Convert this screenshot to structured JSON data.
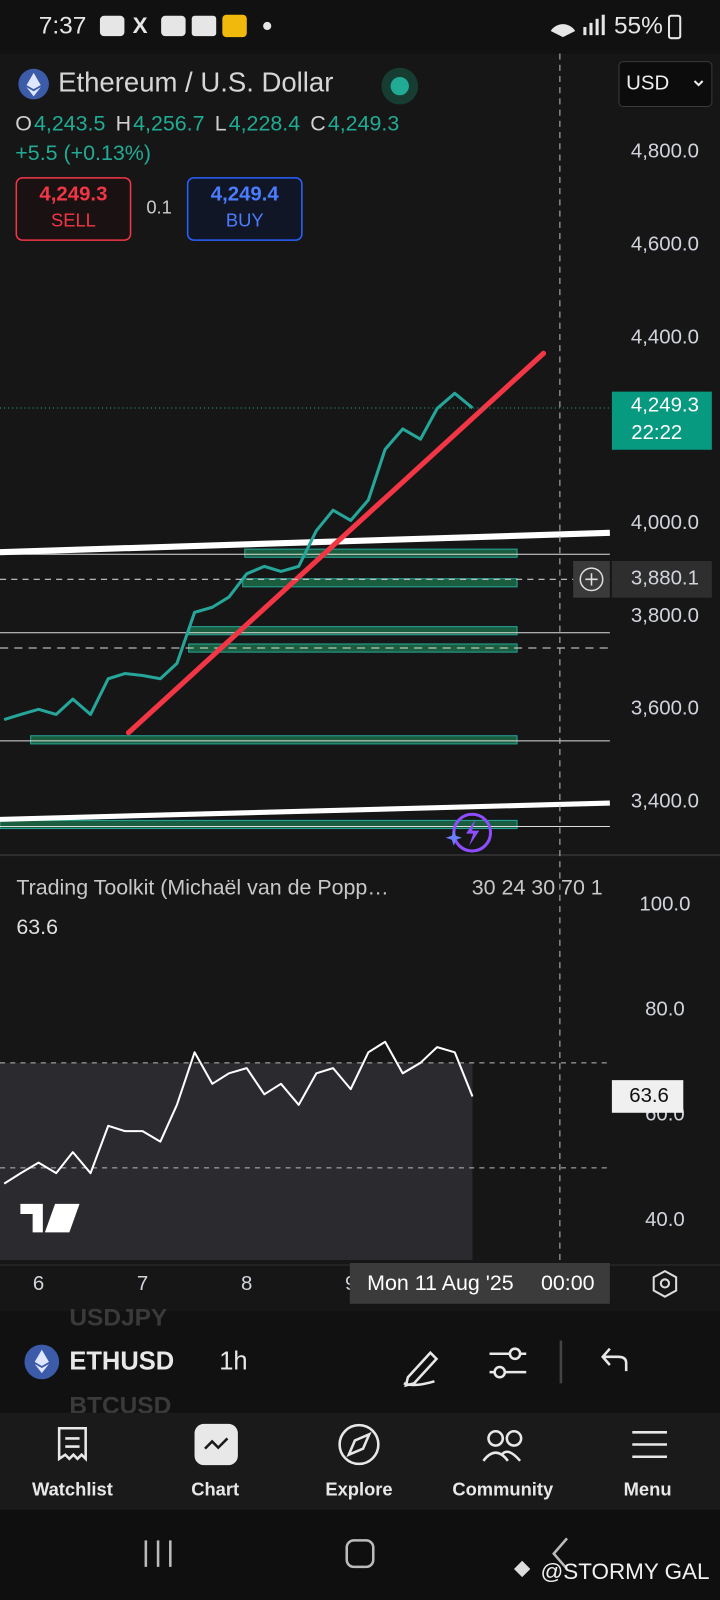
{
  "status_bar": {
    "time": "7:37",
    "battery": "55%"
  },
  "header": {
    "symbol": "Ethereum / U.S. Dollar",
    "currency": "USD",
    "ohlc": [
      {
        "key": "O",
        "value": "4,243.5"
      },
      {
        "key": "H",
        "value": "4,256.7"
      },
      {
        "key": "L",
        "value": "4,228.4"
      },
      {
        "key": "C",
        "value": "4,249.3"
      }
    ],
    "change": "+5.5 (+0.13%)",
    "sell": {
      "price": "4,249.3",
      "label": "SELL"
    },
    "quantity": "0.1",
    "buy": {
      "price": "4,249.4",
      "label": "BUY"
    }
  },
  "chart_data": [
    {
      "type": "line",
      "color": "#26a69a",
      "x": [
        5.67,
        5.83,
        6,
        6.17,
        6.33,
        6.5,
        6.67,
        6.83,
        7,
        7.17,
        7.33,
        7.5,
        7.67,
        7.83,
        8,
        8.17,
        8.33,
        8.5,
        8.67,
        8.83,
        9,
        9.17,
        9.33,
        9.5,
        9.67,
        9.83,
        10,
        10.17
      ],
      "values": [
        3578,
        3589,
        3600,
        3589,
        3622,
        3589,
        3666,
        3677,
        3673,
        3666,
        3699,
        3809,
        3820,
        3842,
        3892,
        3908,
        3897,
        3908,
        3985,
        4029,
        4007,
        4051,
        4160,
        4204,
        4182,
        4248,
        4281,
        4249.3
      ],
      "xlim": [
        5.63,
        11.49
      ],
      "xticks": [
        6,
        7,
        8,
        9
      ],
      "ylim": [
        3286,
        5013
      ],
      "yticks": [
        {
          "value": 3400,
          "label": "3,400.0"
        },
        {
          "value": 3600,
          "label": "3,600.0"
        },
        {
          "value": 3800,
          "label": "3,800.0"
        },
        {
          "value": 4000,
          "label": "4,000.0"
        },
        {
          "value": 4400,
          "label": "4,400.0"
        },
        {
          "value": 4600,
          "label": "4,600.0"
        },
        {
          "value": 4800,
          "label": "4,800.0"
        }
      ],
      "grid": false,
      "last_price": {
        "value": 4249.3,
        "label": "4,249.3",
        "countdown": "22:22"
      },
      "crosshair": {
        "value": 3880.1,
        "label": "3,880.1",
        "date": "Mon 11 Aug '25",
        "time": "00:00"
      }
    },
    {
      "type": "line",
      "color": "#ffffff",
      "title": "Trading Toolkit (Michaël van de Popp…",
      "parameters": "30 24 30 70 1",
      "value_label": "63.6",
      "x": [
        5.67,
        5.83,
        6,
        6.17,
        6.33,
        6.5,
        6.67,
        6.83,
        7,
        7.17,
        7.33,
        7.5,
        7.67,
        7.83,
        8,
        8.17,
        8.33,
        8.5,
        8.67,
        8.83,
        9,
        9.17,
        9.33,
        9.5,
        9.67,
        9.83,
        10,
        10.17
      ],
      "values": [
        47,
        49,
        51,
        49,
        53,
        49,
        58,
        57,
        57,
        55,
        62,
        72,
        66,
        68,
        69,
        64,
        66,
        62,
        68,
        69,
        65,
        72,
        74,
        68,
        70,
        73,
        72,
        63.6
      ],
      "xlim": [
        5.63,
        11.49
      ],
      "ylim": [
        31.5,
        108.2
      ],
      "yticks": [
        {
          "value": 40,
          "label": "40.0"
        },
        {
          "value": 60,
          "label": "60.0"
        },
        {
          "value": 80,
          "label": "80.0"
        },
        {
          "value": 100,
          "label": "100.0"
        }
      ],
      "levels": [
        70,
        50
      ],
      "grid": false,
      "last_value": {
        "value": 63.6,
        "label": "63.6"
      }
    }
  ],
  "toolbar": {
    "symbol": "ETHUSD",
    "interval": "1h",
    "ghost": [
      "USDJPY",
      "BTCUSD"
    ]
  },
  "nav": [
    "Watchlist",
    "Chart",
    "Explore",
    "Community",
    "Menu"
  ],
  "watermark": "@STORMY GAL"
}
